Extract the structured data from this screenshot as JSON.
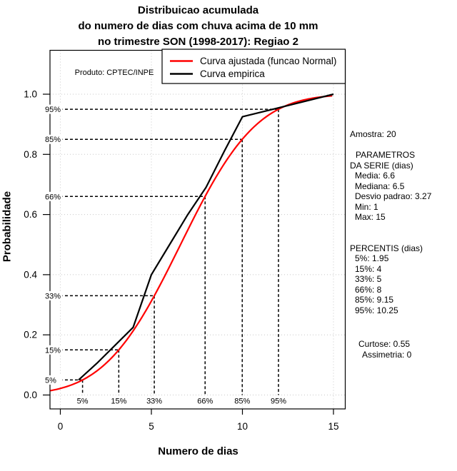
{
  "title": {
    "line1": "Distribuicao acumulada",
    "line2": "do numero de dias com chuva acima de 10 mm",
    "line3": "no trimestre SON (1998-2017): Regiao 2"
  },
  "axes": {
    "xlabel": "Numero de dias",
    "ylabel": "Probabilidade"
  },
  "annotation": {
    "produto": "Produto: CPTEC/INPE"
  },
  "legend": {
    "fitted": "Curva ajustada (funcao Normal)",
    "empirical": "Curva empirica"
  },
  "stats": {
    "sample": "Amostra: 20",
    "params_title1": "PARAMETROS",
    "params_title2": "DA SERIE (dias)",
    "mean": "Media: 6.6",
    "median": "Mediana: 6.5",
    "std": "Desvio padrao: 3.27",
    "min": "Min: 1",
    "max": "Max: 15",
    "percentiles_title": "PERCENTIS (dias)",
    "p5": "5%: 1.95",
    "p15": "15%: 4",
    "p33": "33%: 5",
    "p66": "66%: 8",
    "p85": "85%: 9.15",
    "p95": "95%: 10.25",
    "kurtosis": "Curtose: 0.55",
    "skewness": "Assimetria: 0"
  },
  "chart_data": {
    "type": "line",
    "title": "Distribuicao acumulada do numero de dias com chuva acima de 10 mm no trimestre SON (1998-2017): Regiao 2",
    "xlabel": "Numero de dias",
    "ylabel": "Probabilidade",
    "xlim": [
      -0.55,
      15.67
    ],
    "ylim": [
      -0.05,
      1.15
    ],
    "x_ticks": [
      0,
      5,
      10,
      15
    ],
    "y_ticks": [
      0,
      0.2,
      0.4,
      0.6,
      0.8,
      1
    ],
    "grid": true,
    "grid_color": "#c8c8c8",
    "legend_position": "top-right",
    "series": [
      {
        "name": "Curva ajustada (funcao Normal)",
        "type": "normal_cdf",
        "color": "#ff0000",
        "mean": 6.6,
        "sd": 3.27,
        "x_range": [
          -0.55,
          15
        ]
      },
      {
        "name": "Curva empirica",
        "type": "polyline",
        "color": "#000000",
        "points": [
          [
            1,
            0.05
          ],
          [
            2,
            0.105
          ],
          [
            4,
            0.225
          ],
          [
            5,
            0.4
          ],
          [
            6,
            0.5
          ],
          [
            7,
            0.6
          ],
          [
            8,
            0.69
          ],
          [
            9,
            0.81
          ],
          [
            10,
            0.925
          ],
          [
            15,
            1.0
          ]
        ]
      }
    ],
    "percentile_guides": [
      {
        "label": "5%",
        "p": 0.05,
        "x": 1.22
      },
      {
        "label": "15%",
        "p": 0.15,
        "x": 3.21
      },
      {
        "label": "33%",
        "p": 0.33,
        "x": 5.16
      },
      {
        "label": "66%",
        "p": 0.66,
        "x": 7.95
      },
      {
        "label": "85%",
        "p": 0.85,
        "x": 9.99
      },
      {
        "label": "95%",
        "p": 0.95,
        "x": 11.98
      }
    ]
  }
}
